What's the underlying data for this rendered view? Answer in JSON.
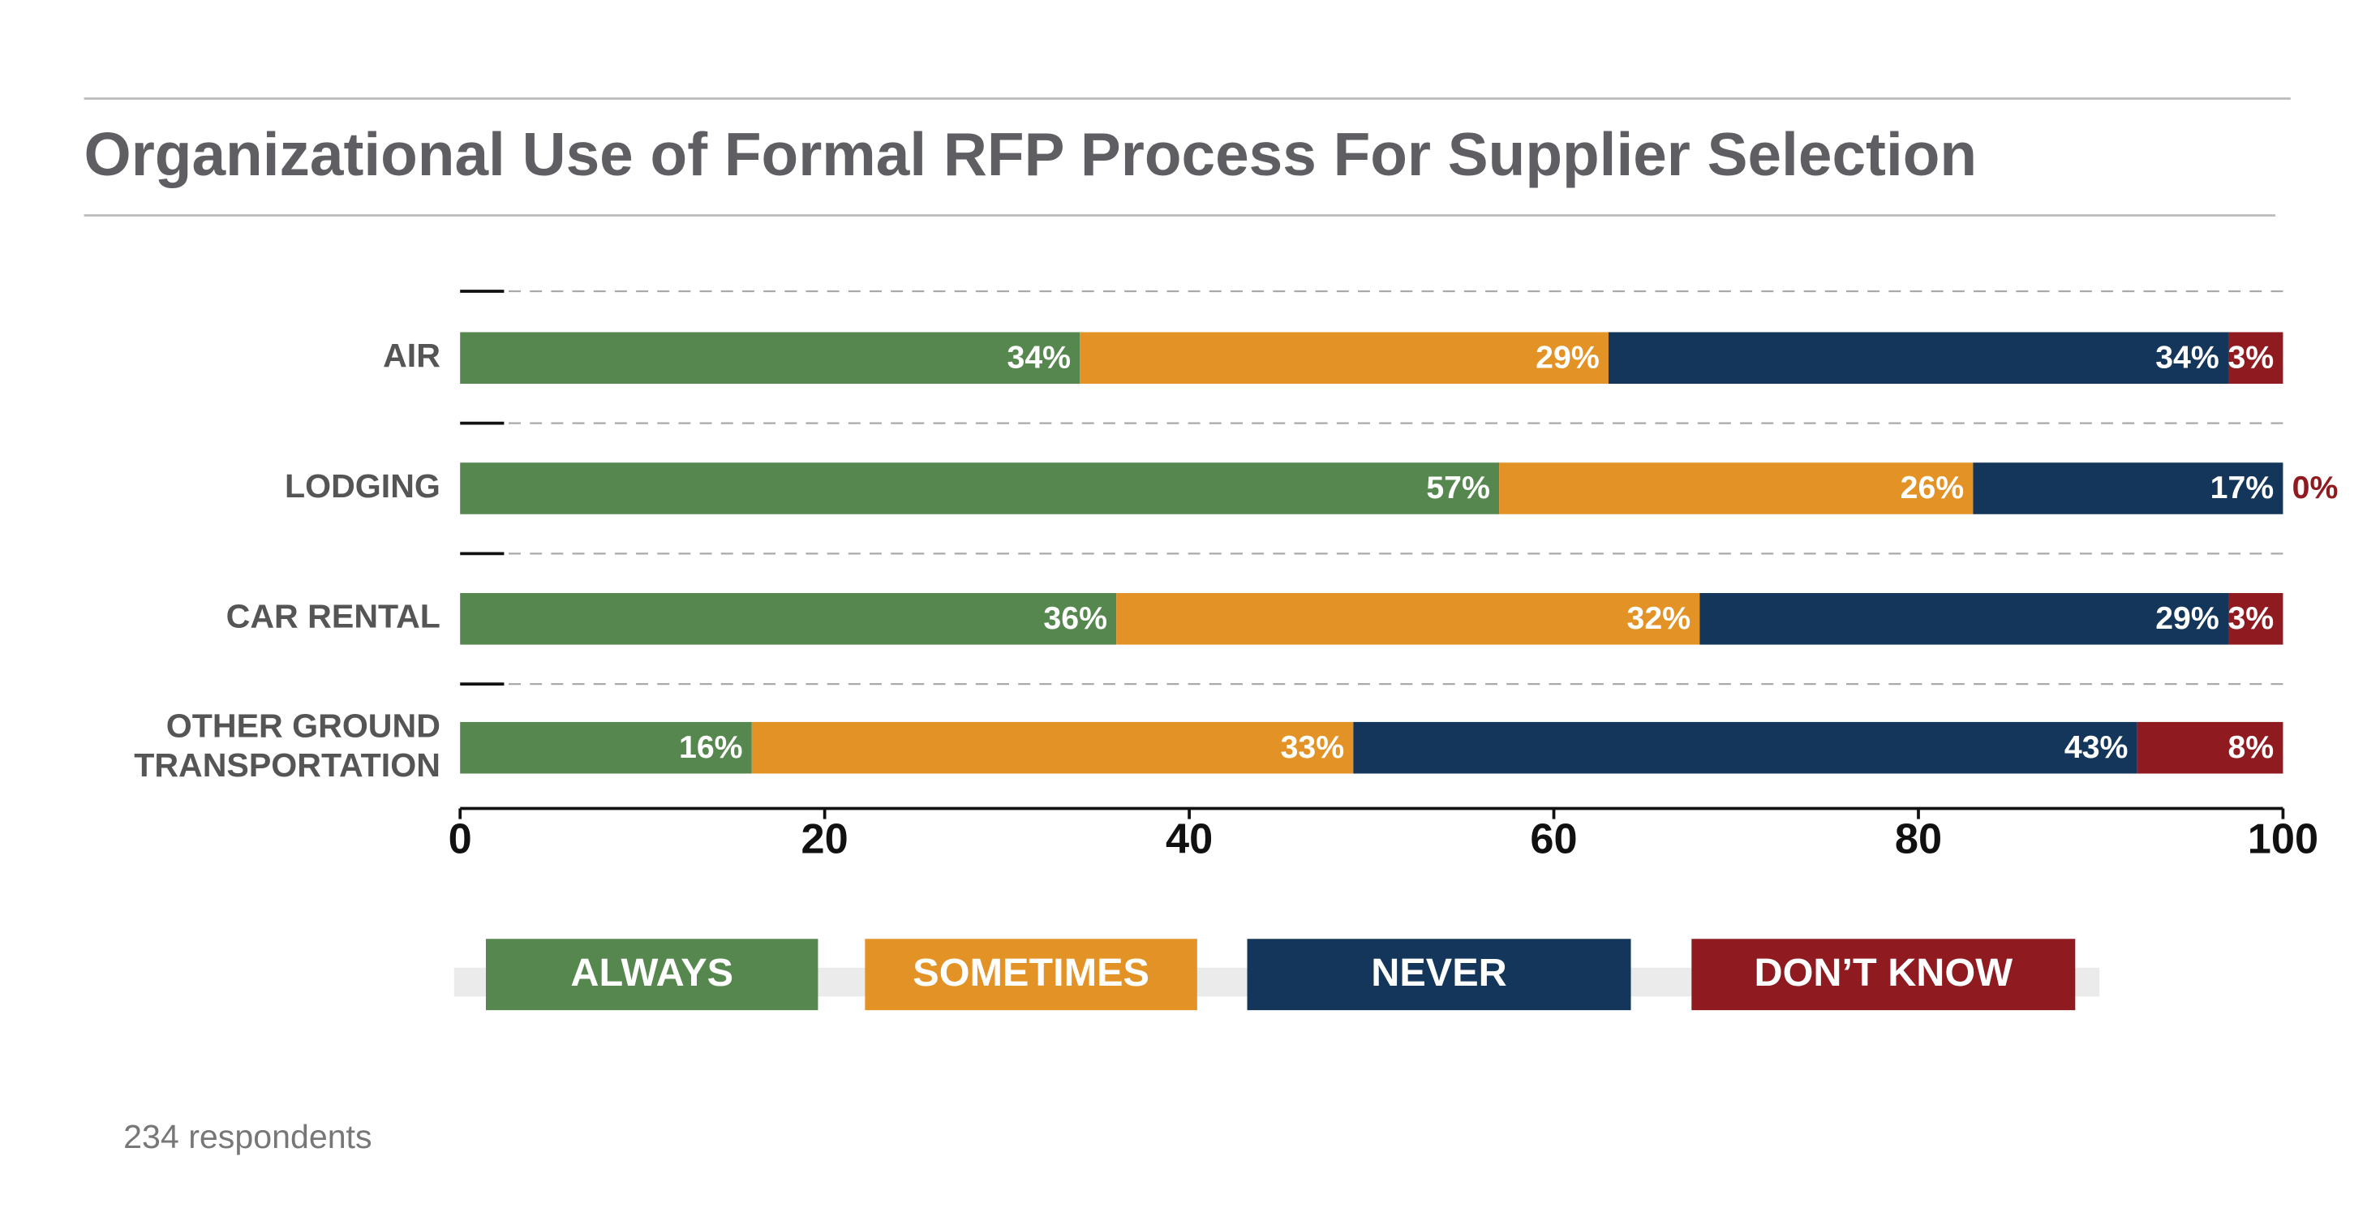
{
  "chart_data": {
    "type": "stacked_bar_horizontal",
    "title": "Organizational Use of Formal RFP Process For Supplier Selection",
    "categories": [
      "AIR",
      "LODGING",
      "CAR RENTAL",
      "OTHER GROUND TRANSPORTATION"
    ],
    "series": [
      {
        "name": "ALWAYS",
        "color": "#56874f",
        "values": [
          34,
          57,
          36,
          16
        ],
        "value_labels": [
          "34%",
          "57%",
          "36%",
          "16%"
        ]
      },
      {
        "name": "SOMETIMES",
        "color": "#e39226",
        "values": [
          29,
          26,
          32,
          33
        ],
        "value_labels": [
          "29%",
          "26%",
          "32%",
          "33%"
        ]
      },
      {
        "name": "NEVER",
        "color": "#14365a",
        "values": [
          34,
          17,
          29,
          43
        ],
        "value_labels": [
          "34%",
          "17%",
          "29%",
          "43%"
        ]
      },
      {
        "name": "DON’T KNOW",
        "color": "#8f1a1f",
        "values": [
          3,
          0,
          3,
          8
        ],
        "value_labels": [
          "3%",
          "0%",
          "3%",
          "8%"
        ]
      }
    ],
    "xlim": [
      0,
      100
    ],
    "xticks": [
      0,
      20,
      40,
      60,
      80,
      100
    ],
    "footnote": "234 respondents"
  }
}
